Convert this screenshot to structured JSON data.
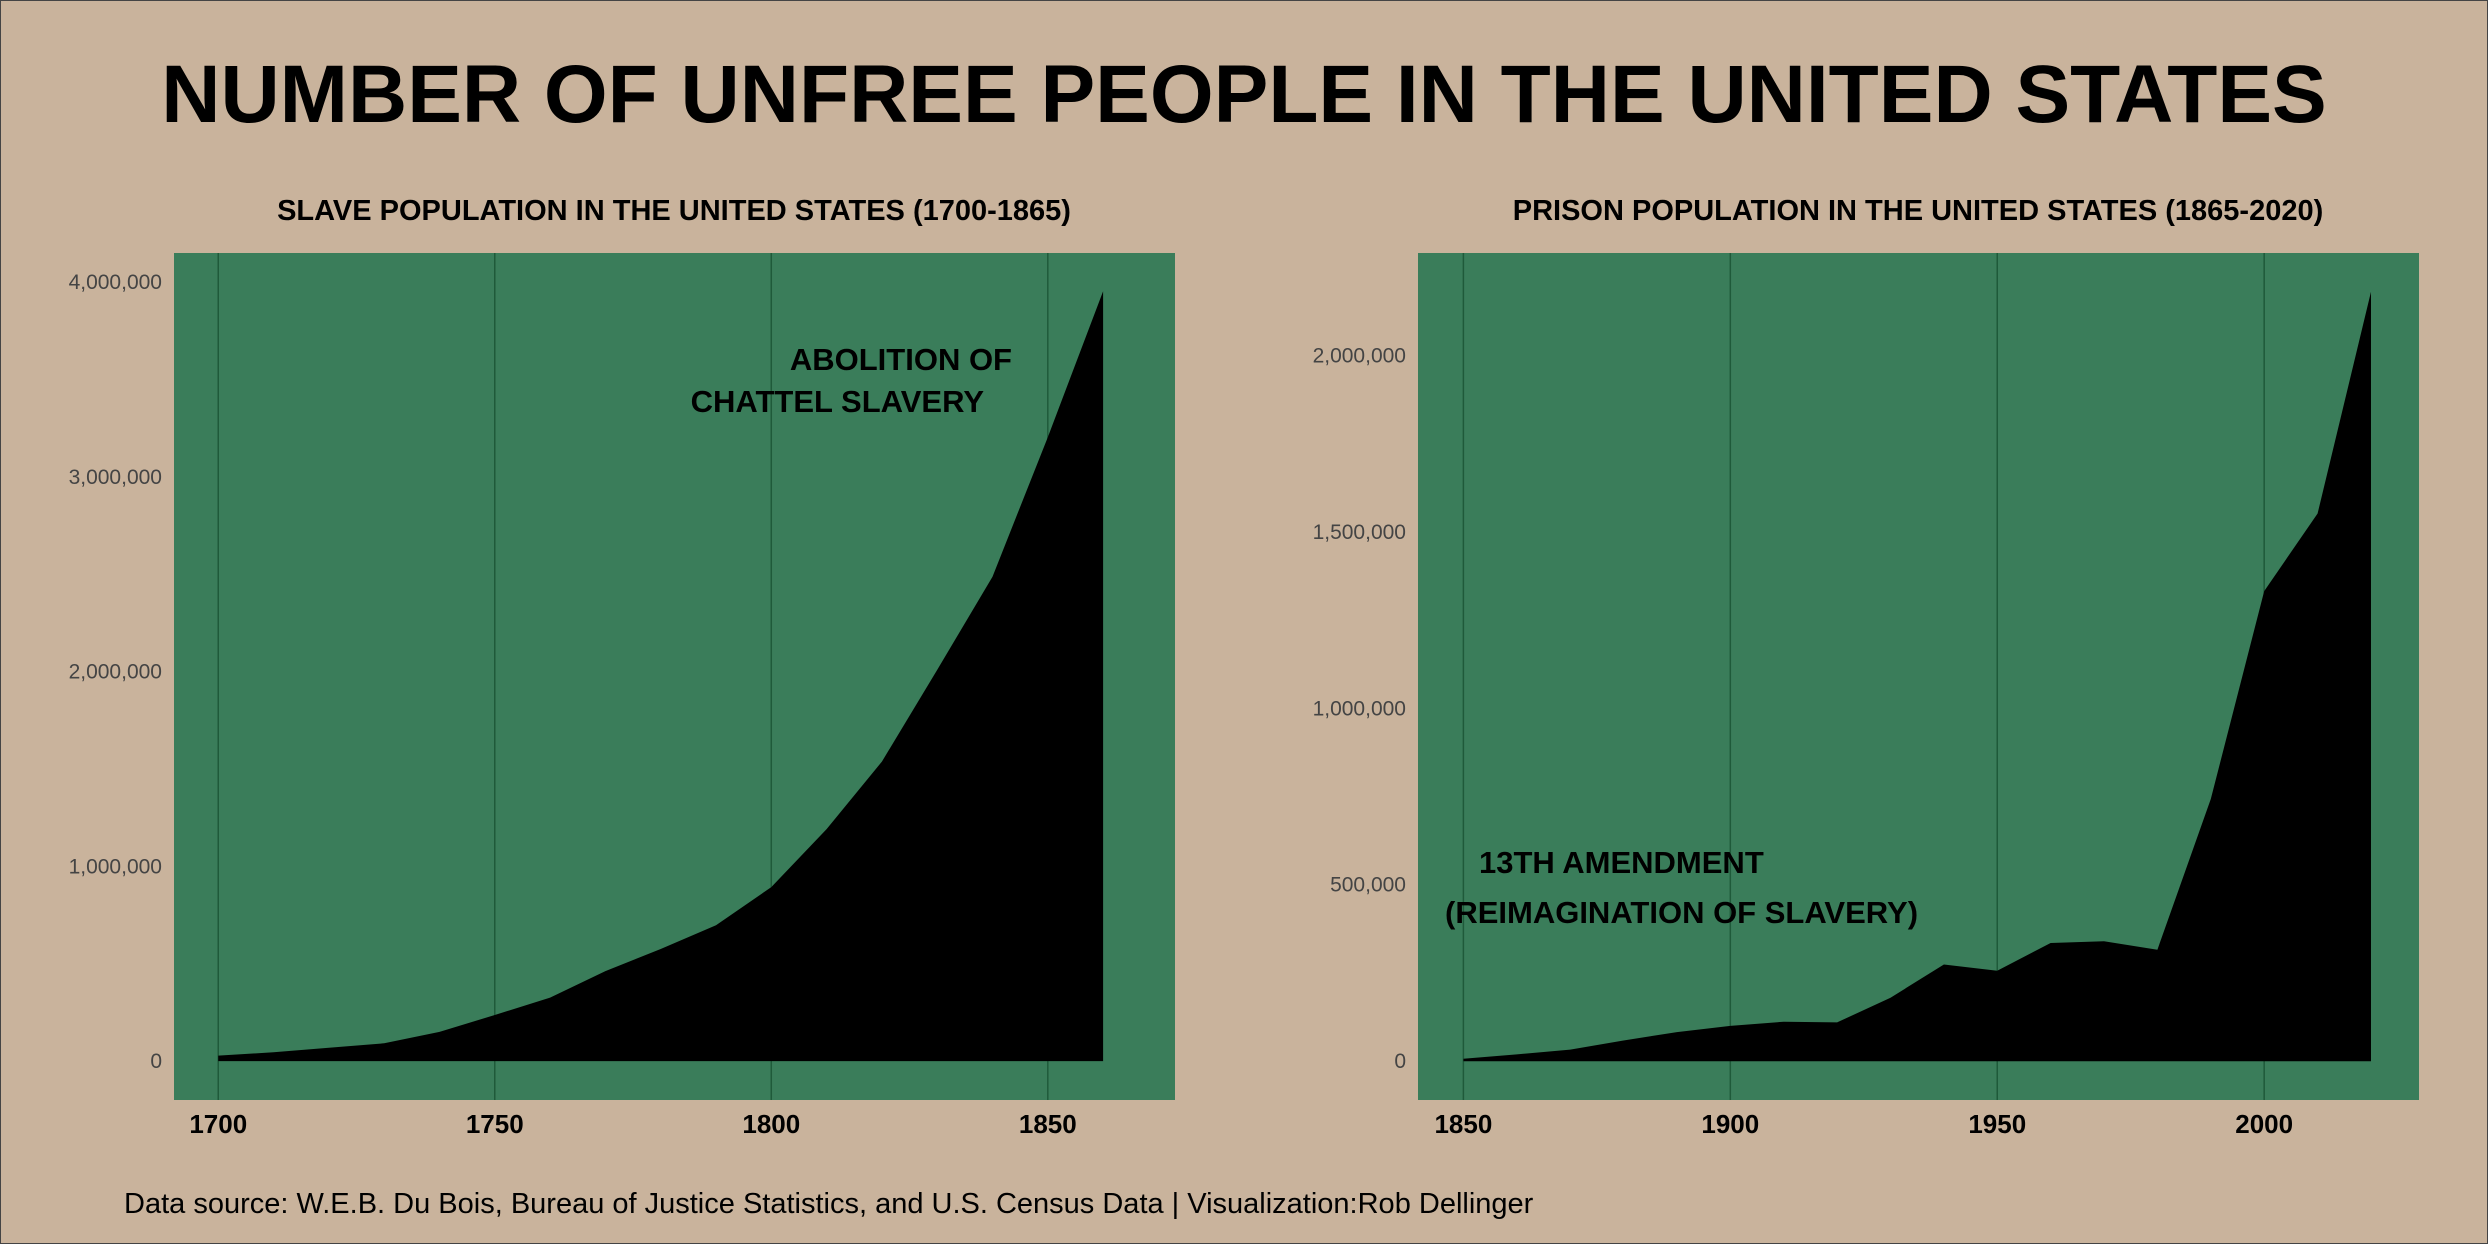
{
  "title": "NUMBER OF UNFREE PEOPLE IN THE UNITED STATES",
  "footer": "Data source: W.E.B. Du Bois, Bureau of Justice Statistics, and U.S. Census Data | Visualization:Rob Dellinger",
  "colors": {
    "background": "#c9b39c",
    "plot_bg": "#3a7d5a",
    "area": "#000000",
    "grid": "#1f5a3a"
  },
  "chart_data": [
    {
      "type": "area",
      "title": "SLAVE POPULATION IN THE UNITED STATES (1700-1865)",
      "xlabel": "",
      "ylabel": "",
      "xlim": [
        1692,
        1873
      ],
      "ylim": [
        -200000,
        4150000
      ],
      "xticks": [
        1700,
        1750,
        1800,
        1850
      ],
      "xtick_labels": [
        "1700",
        "1750",
        "1800",
        "1850"
      ],
      "yticks": [
        0,
        1000000,
        2000000,
        3000000,
        4000000
      ],
      "ytick_labels": [
        "0",
        "1,000,000",
        "2,000,000",
        "3,000,000",
        "4,000,000"
      ],
      "grid": "vertical",
      "x": [
        1700,
        1710,
        1720,
        1730,
        1740,
        1750,
        1760,
        1770,
        1780,
        1790,
        1800,
        1810,
        1820,
        1830,
        1840,
        1850,
        1860
      ],
      "values": [
        27800,
        44900,
        68800,
        91000,
        150000,
        236400,
        325800,
        462000,
        575400,
        697900,
        893600,
        1191400,
        1538000,
        2009000,
        2487500,
        3204000,
        3953800
      ],
      "annotations": [
        {
          "lines": [
            "ABOLITION OF",
            "CHATTEL SLAVERY"
          ],
          "align": "right"
        }
      ]
    },
    {
      "type": "area",
      "title": "PRISON POPULATION IN THE UNITED STATES  (1865-2020)",
      "xlabel": "",
      "ylabel": "",
      "xlim": [
        1841.5,
        2029
      ],
      "ylim": [
        -110000,
        2290000
      ],
      "xticks": [
        1850,
        1900,
        1950,
        2000
      ],
      "xtick_labels": [
        "1850",
        "1900",
        "1950",
        "2000"
      ],
      "yticks": [
        0,
        500000,
        1000000,
        1500000,
        2000000
      ],
      "ytick_labels": [
        "0",
        "500,000",
        "1,000,000",
        "1,500,000",
        "2,000,000"
      ],
      "grid": "vertical",
      "x": [
        1850,
        1860,
        1870,
        1880,
        1890,
        1900,
        1910,
        1920,
        1930,
        1940,
        1950,
        1960,
        1970,
        1980,
        1990,
        2000,
        2010,
        2020
      ],
      "values": [
        6700,
        19100,
        32900,
        58600,
        82300,
        100000,
        112000,
        110000,
        180000,
        274000,
        256000,
        335000,
        340000,
        316000,
        743000,
        1332000,
        1552000,
        2180000
      ],
      "annotations": [
        {
          "lines": [
            "13TH AMENDMENT",
            "(REIMAGINATION OF SLAVERY)"
          ],
          "align": "left"
        }
      ]
    }
  ]
}
